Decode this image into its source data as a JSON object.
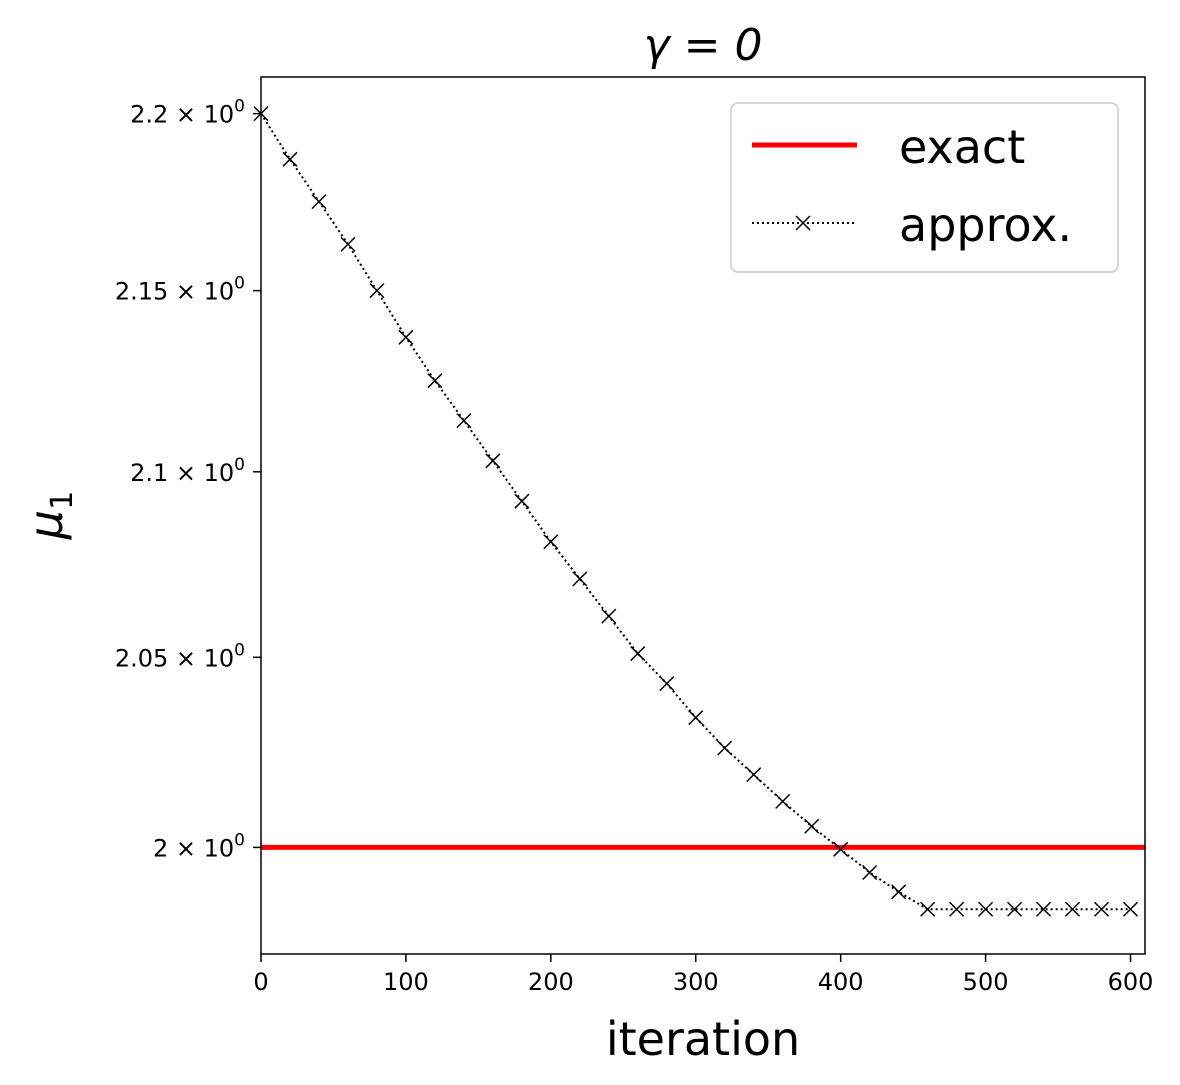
{
  "chart_data": {
    "type": "line",
    "title": "γ = 0",
    "xlabel": "iteration",
    "ylabel": "μ",
    "ylabel_subscript": "1",
    "xlim": [
      0,
      610
    ],
    "ylim": [
      1.9725,
      2.2105
    ],
    "yscale": "log",
    "grid": false,
    "legend_position": "top-right",
    "x_ticks": [
      0,
      100,
      200,
      300,
      400,
      500,
      600
    ],
    "y_ticks": [
      {
        "value": 2.0,
        "label_base": "2",
        "label_times": "× 10",
        "label_exp": "0"
      },
      {
        "value": 2.05,
        "label_base": "2.05",
        "label_times": "× 10",
        "label_exp": "0"
      },
      {
        "value": 2.1,
        "label_base": "2.1",
        "label_times": "× 10",
        "label_exp": "0"
      },
      {
        "value": 2.15,
        "label_base": "2.15",
        "label_times": "× 10",
        "label_exp": "0"
      },
      {
        "value": 2.2,
        "label_base": "2.2",
        "label_times": "× 10",
        "label_exp": "0"
      }
    ],
    "series": [
      {
        "name": "exact",
        "style": "solid",
        "color": "#ff0000",
        "x": [
          0,
          610
        ],
        "y": [
          2.0,
          2.0
        ]
      },
      {
        "name": "approx.",
        "style": "dotted",
        "marker": "x",
        "color": "#000000",
        "x": [
          0,
          20,
          40,
          60,
          80,
          100,
          120,
          140,
          160,
          180,
          200,
          220,
          240,
          260,
          280,
          300,
          320,
          340,
          360,
          380,
          400,
          420,
          440,
          460,
          480,
          500,
          520,
          540,
          560,
          580,
          600
        ],
        "y": [
          2.2,
          2.187,
          2.175,
          2.163,
          2.15,
          2.137,
          2.125,
          2.114,
          2.103,
          2.092,
          2.081,
          2.071,
          2.061,
          2.051,
          2.043,
          2.034,
          2.026,
          2.019,
          2.012,
          2.0055,
          1.9995,
          1.9935,
          1.9885,
          1.984,
          1.984,
          1.984,
          1.984,
          1.984,
          1.984,
          1.984,
          1.984
        ]
      }
    ]
  }
}
